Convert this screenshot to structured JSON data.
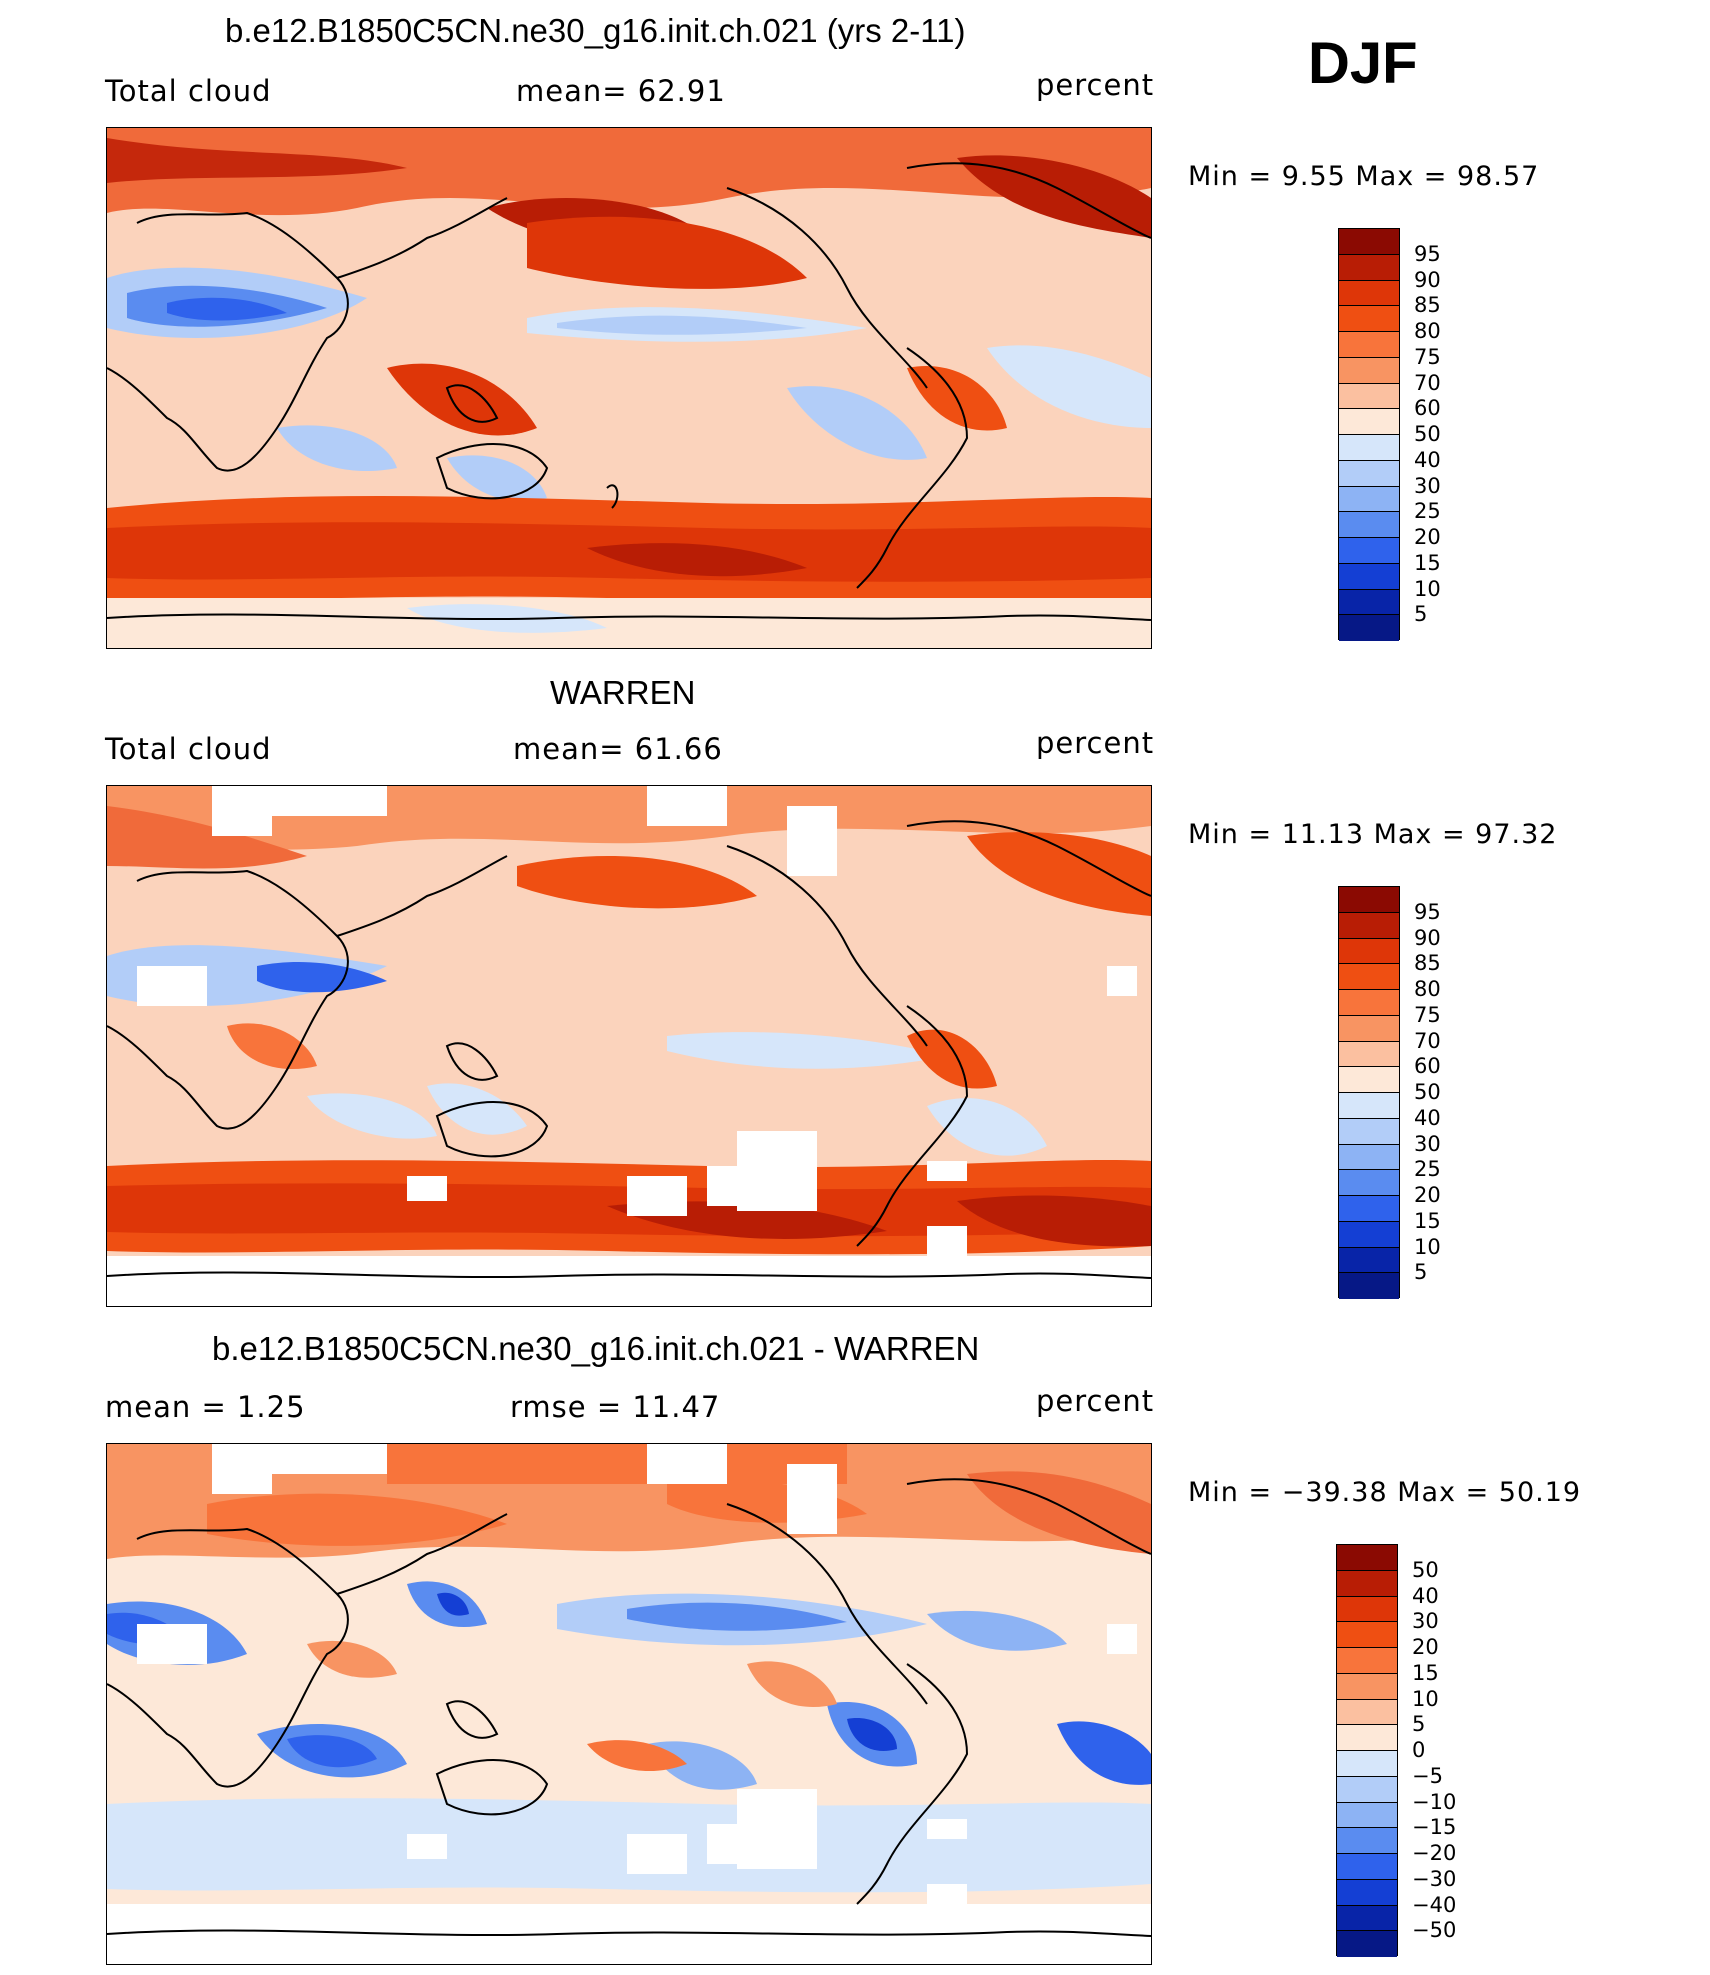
{
  "season": "DJF",
  "panels": [
    {
      "title": "b.e12.B1850C5CN.ne30_g16.init.ch.021 (yrs 2-11)",
      "left_label": "Total cloud",
      "center_label": "mean=   62.91",
      "right_label": "percent",
      "minmax": "Min =    9.55 Max =   98.57",
      "colorbar_labels": [
        "95",
        "90",
        "85",
        "80",
        "75",
        "70",
        "60",
        "50",
        "40",
        "30",
        "25",
        "20",
        "15",
        "10",
        "5"
      ],
      "colorbar_colors": [
        "#8b0a02",
        "#b81d05",
        "#de3608",
        "#ef4f12",
        "#f8743b",
        "#f89462",
        "#fbc0a0",
        "#fde8d8",
        "#d6e6fa",
        "#b2cdf8",
        "#8db3f4",
        "#5a8cf0",
        "#2f62ec",
        "#143fd4",
        "#0824a8",
        "#061886"
      ]
    },
    {
      "title": "WARREN",
      "left_label": "Total cloud",
      "center_label": "mean=   61.66",
      "right_label": "percent",
      "minmax": "Min =   11.13 Max =   97.32",
      "colorbar_labels": [
        "95",
        "90",
        "85",
        "80",
        "75",
        "70",
        "60",
        "50",
        "40",
        "30",
        "25",
        "20",
        "15",
        "10",
        "5"
      ],
      "colorbar_colors": [
        "#8b0a02",
        "#b81d05",
        "#de3608",
        "#ef4f12",
        "#f8743b",
        "#f89462",
        "#fbc0a0",
        "#fde8d8",
        "#d6e6fa",
        "#b2cdf8",
        "#8db3f4",
        "#5a8cf0",
        "#2f62ec",
        "#143fd4",
        "#0824a8",
        "#061886"
      ]
    },
    {
      "title": "b.e12.B1850C5CN.ne30_g16.init.ch.021 - WARREN",
      "left_label": "mean =    1.25",
      "center_label": "rmse =   11.47",
      "right_label": "percent",
      "minmax": "Min = −39.38 Max =   50.19",
      "colorbar_labels": [
        "50",
        "40",
        "30",
        "20",
        "15",
        "10",
        "5",
        "0",
        "−5",
        "−10",
        "−15",
        "−20",
        "−30",
        "−40",
        "−50"
      ],
      "colorbar_colors": [
        "#8b0a02",
        "#b81d05",
        "#de3608",
        "#ef4f12",
        "#f8743b",
        "#f89462",
        "#fbc0a0",
        "#fde8d8",
        "#d6e6fa",
        "#b2cdf8",
        "#8db3f4",
        "#5a8cf0",
        "#2f62ec",
        "#143fd4",
        "#0824a8",
        "#061886"
      ]
    }
  ]
}
